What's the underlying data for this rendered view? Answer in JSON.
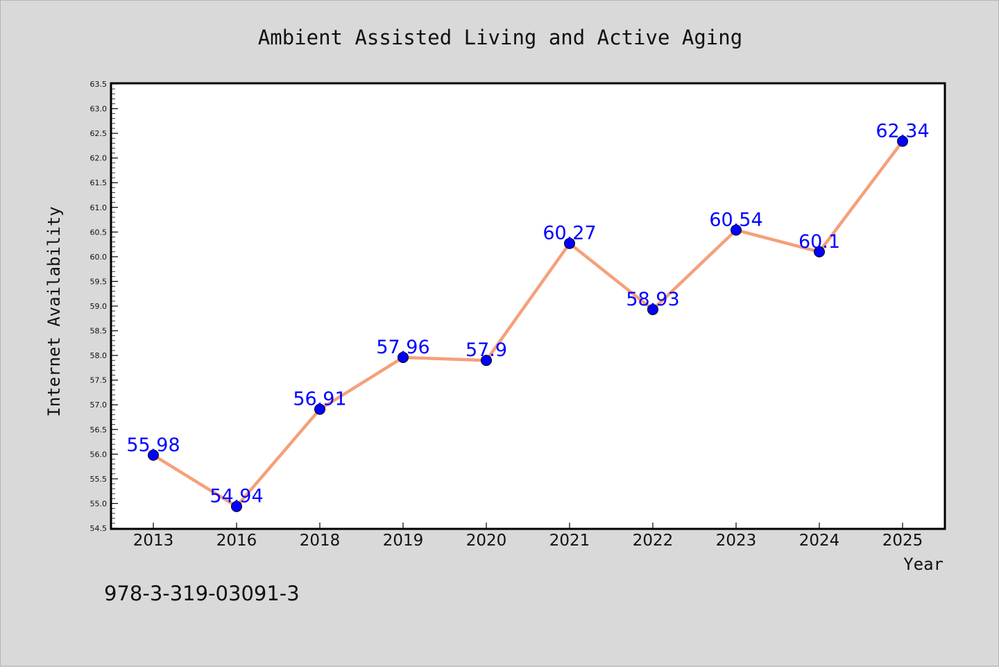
{
  "figure": {
    "footnote": "978-3-319-03091-3",
    "background": "#d9d9d9"
  },
  "chart_data": {
    "type": "line",
    "title": "Ambient Assisted Living and Active Aging",
    "xlabel": "Year",
    "ylabel": "Internet Availability",
    "categories": [
      "2013",
      "2016",
      "2018",
      "2019",
      "2020",
      "2021",
      "2022",
      "2023",
      "2024",
      "2025"
    ],
    "series": [
      {
        "values": [
          55.98,
          54.94,
          56.91,
          57.96,
          57.9,
          60.27,
          58.93,
          60.54,
          60.1,
          62.34
        ],
        "data_labels": [
          "55.98",
          "54.94",
          "56.91",
          "57.96",
          "57.9",
          "60.27",
          "58.93",
          "60.54",
          "60.1",
          "62.34"
        ]
      }
    ],
    "ylim": [
      54.5,
      63.5
    ],
    "yticks": [
      "54.5",
      "55.0",
      "55.5",
      "56.0",
      "56.5",
      "57.0",
      "57.5",
      "58.0",
      "58.5",
      "59.0",
      "59.5",
      "60.0",
      "60.5",
      "61.0",
      "61.5",
      "62.0",
      "62.5",
      "63.0",
      "63.5"
    ],
    "ytick_values": [
      54.5,
      55.0,
      55.5,
      56.0,
      56.5,
      57.0,
      57.5,
      58.0,
      58.5,
      59.0,
      59.5,
      60.0,
      60.5,
      61.0,
      61.5,
      62.0,
      62.5,
      63.0,
      63.5
    ],
    "grid": false,
    "colors": {
      "line": "#f5a07a",
      "marker": "#0000ff",
      "label": "#0000ff",
      "plot_bg": "#ffffff",
      "axes": "#000000"
    }
  }
}
